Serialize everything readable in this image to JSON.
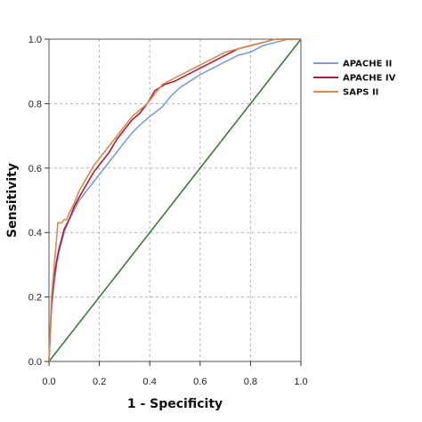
{
  "chart_data": {
    "type": "line",
    "title": "",
    "xlabel": "1 - Specificity",
    "ylabel": "Sensitivity",
    "xlim": [
      0,
      1
    ],
    "ylim": [
      0,
      1
    ],
    "x_ticks": [
      "0.0",
      "0.2",
      "0.4",
      "0.6",
      "0.8",
      "1.0"
    ],
    "y_ticks": [
      "0.0",
      "0.2",
      "0.4",
      "0.6",
      "0.8",
      "1.0"
    ],
    "grid": true,
    "legend_position": "right",
    "series": [
      {
        "name": "APACHE II",
        "color": "#7a9fd4",
        "x": [
          0,
          0.01,
          0.02,
          0.03,
          0.04,
          0.05,
          0.06,
          0.08,
          0.1,
          0.12,
          0.15,
          0.18,
          0.22,
          0.26,
          0.3,
          0.33,
          0.37,
          0.4,
          0.45,
          0.48,
          0.52,
          0.56,
          0.6,
          0.65,
          0.7,
          0.75,
          0.8,
          0.85,
          0.9,
          0.95,
          1.0
        ],
        "y": [
          0,
          0.16,
          0.24,
          0.3,
          0.34,
          0.37,
          0.4,
          0.44,
          0.47,
          0.5,
          0.53,
          0.56,
          0.6,
          0.64,
          0.68,
          0.71,
          0.74,
          0.76,
          0.79,
          0.82,
          0.85,
          0.87,
          0.89,
          0.91,
          0.93,
          0.95,
          0.96,
          0.98,
          0.99,
          1.0,
          1.0
        ]
      },
      {
        "name": "APACHE IV",
        "color": "#b5173f",
        "x": [
          0,
          0.01,
          0.02,
          0.03,
          0.04,
          0.05,
          0.06,
          0.08,
          0.1,
          0.12,
          0.15,
          0.18,
          0.21,
          0.24,
          0.27,
          0.3,
          0.33,
          0.36,
          0.39,
          0.42,
          0.46,
          0.5,
          0.55,
          0.6,
          0.65,
          0.7,
          0.75,
          0.8,
          0.85,
          0.9,
          0.95,
          1.0
        ],
        "y": [
          0,
          0.18,
          0.26,
          0.31,
          0.35,
          0.38,
          0.41,
          0.44,
          0.48,
          0.51,
          0.55,
          0.59,
          0.62,
          0.65,
          0.69,
          0.72,
          0.75,
          0.77,
          0.8,
          0.84,
          0.86,
          0.87,
          0.89,
          0.91,
          0.93,
          0.95,
          0.97,
          0.98,
          0.99,
          1.0,
          1.0,
          1.0
        ]
      },
      {
        "name": "SAPS II",
        "color": "#d98a4e",
        "x": [
          0,
          0.01,
          0.02,
          0.03,
          0.035,
          0.05,
          0.06,
          0.07,
          0.08,
          0.1,
          0.12,
          0.15,
          0.18,
          0.21,
          0.24,
          0.27,
          0.3,
          0.33,
          0.36,
          0.39,
          0.42,
          0.45,
          0.5,
          0.55,
          0.6,
          0.65,
          0.7,
          0.75,
          0.8,
          0.85,
          0.9,
          0.95,
          1.0
        ],
        "y": [
          0,
          0.2,
          0.29,
          0.38,
          0.43,
          0.43,
          0.44,
          0.44,
          0.46,
          0.49,
          0.53,
          0.57,
          0.61,
          0.64,
          0.67,
          0.7,
          0.73,
          0.76,
          0.78,
          0.8,
          0.83,
          0.86,
          0.88,
          0.9,
          0.92,
          0.94,
          0.96,
          0.97,
          0.98,
          0.99,
          1.0,
          1.0,
          1.0
        ]
      },
      {
        "name": "",
        "color": "#3c7a3a",
        "x": [
          0,
          1
        ],
        "y": [
          0,
          1
        ]
      }
    ]
  }
}
